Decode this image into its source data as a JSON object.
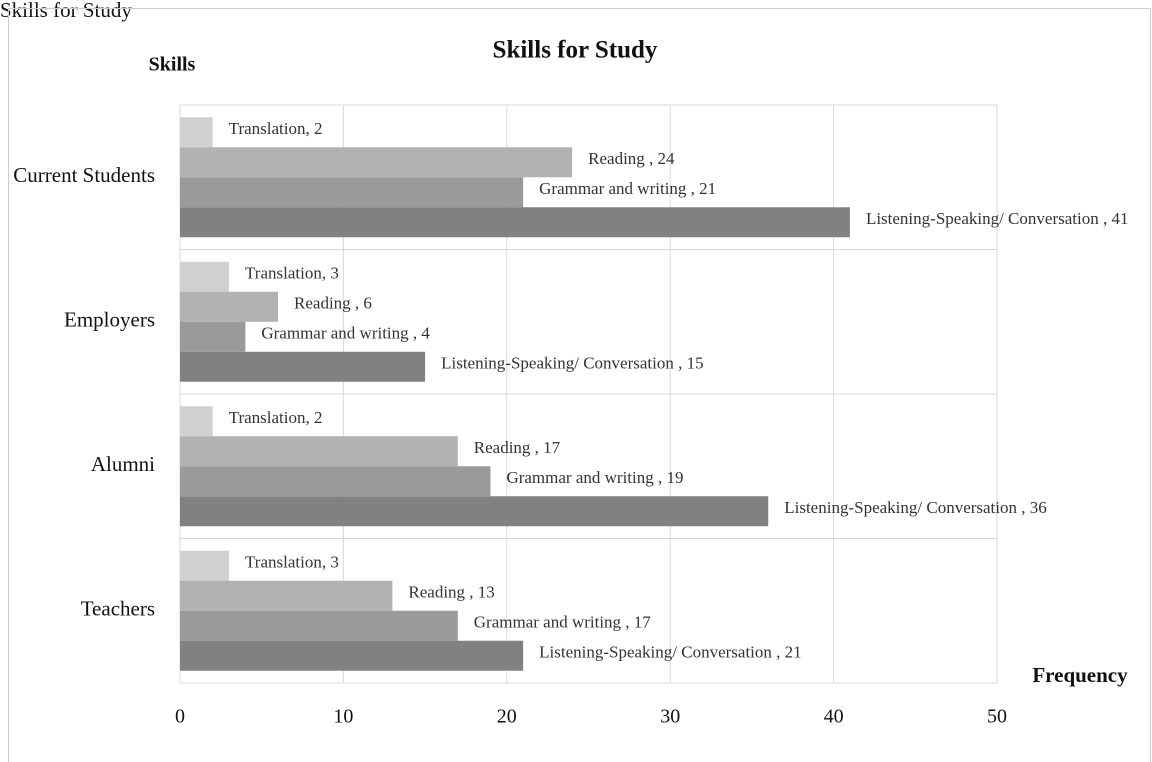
{
  "caption": "Skills for Study",
  "chart_data": {
    "type": "bar",
    "orientation": "horizontal",
    "title": "Skills for Study",
    "y_label": "Skills",
    "x_label": "Frequency",
    "categories": [
      "Current Students",
      "Employers",
      "Alumni",
      "Teachers"
    ],
    "series": [
      {
        "name": "Translation",
        "color": "#d0d0d0",
        "values": [
          2,
          3,
          2,
          3
        ],
        "value_labels": [
          "Translation, 2",
          "Translation, 3",
          "Translation, 2",
          "Translation, 3"
        ]
      },
      {
        "name": "Reading",
        "color": "#b2b2b2",
        "values": [
          24,
          6,
          17,
          13
        ],
        "value_labels": [
          "Reading , 24",
          "Reading , 6",
          "Reading , 17",
          "Reading , 13"
        ]
      },
      {
        "name": "Grammar and writing",
        "color": "#9a9a9a",
        "values": [
          21,
          4,
          19,
          17
        ],
        "value_labels": [
          "Grammar and writing , 21",
          "Grammar and writing , 4",
          "Grammar and writing , 19",
          "Grammar and writing , 17"
        ]
      },
      {
        "name": "Listening-Speaking/ Conversation",
        "color": "#818181",
        "values": [
          41,
          15,
          36,
          21
        ],
        "value_labels": [
          "Listening-Speaking/ Conversation , 41",
          "Listening-Speaking/ Conversation , 15",
          "Listening-Speaking/ Conversation , 36",
          "Listening-Speaking/ Conversation , 21"
        ]
      }
    ],
    "xlim": [
      0,
      50
    ],
    "xticks": [
      0,
      10,
      20,
      30,
      40,
      50
    ],
    "grid": true
  }
}
